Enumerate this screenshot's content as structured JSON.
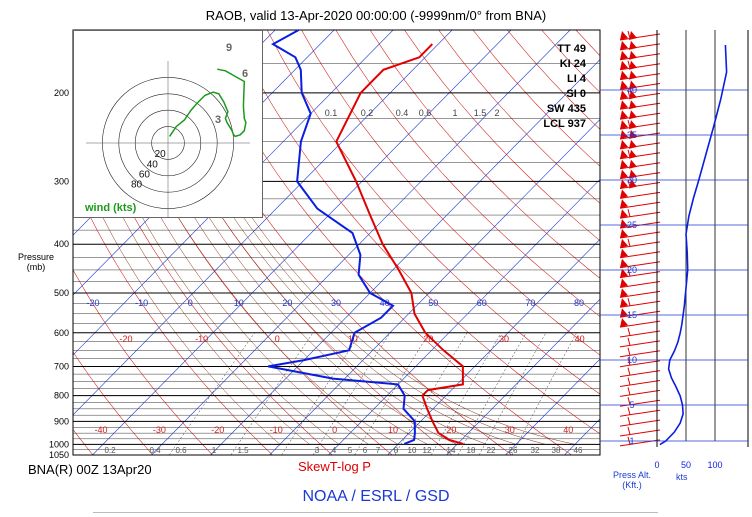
{
  "header": {
    "title": "RAOB, valid 13-Apr-2020 00:00:00 (-9999nm/0° from BNA)"
  },
  "footer": {
    "agency": "NOAA / ESRL / GSD",
    "station": "BNA(R) 00Z 13Apr20",
    "diagram_type": "SkewT-log P"
  },
  "axes": {
    "pressure_label": "Pressure",
    "pressure_unit": "(mb)",
    "press_alt_label": "Press Alt.",
    "press_alt_unit": "(Kft.)",
    "wind_unit": "kts"
  },
  "indices": [
    {
      "name": "TT",
      "value": "49"
    },
    {
      "name": "KI",
      "value": "24"
    },
    {
      "name": "LI",
      "value": "4"
    },
    {
      "name": "SI",
      "value": "0"
    },
    {
      "name": "SW",
      "value": "435"
    },
    {
      "name": "LCL",
      "value": "937"
    }
  ],
  "hodograph": {
    "label": "wind (kts)",
    "ring_labels": [
      "20",
      "40",
      "60",
      "80"
    ]
  },
  "colors": {
    "temperature": "#e00000",
    "dewpoint": "#0a1ee0",
    "wind_speed": "#0a1ee0",
    "isobar": "#000000",
    "isotherm": "#1b39d3",
    "dry_adiabat": "#d21b1b",
    "moist_adiabat": "#8b2f12",
    "mixing_ratio": "#000000",
    "hodograph": "#1a9c1a",
    "barb": "#e00000"
  },
  "chart_data": [
    {
      "type": "line",
      "title": "SkewT-log P",
      "ylabel": "Pressure (mb)",
      "yscale": "log-inverted",
      "ylim": [
        1050,
        150
      ],
      "pressure_ticks": [
        "1050",
        "1000",
        "900",
        "800",
        "700",
        "600",
        "500",
        "400",
        "300",
        "200"
      ],
      "isotherm_labels_row1": [
        "-20",
        "-10",
        "0",
        "10",
        "20",
        "30",
        "40",
        "50",
        "60",
        "70",
        "80"
      ],
      "isotherm_labels_row2": [
        "-20",
        "-10",
        "0",
        "10",
        "20",
        "30",
        "40"
      ],
      "isotherm_labels_row3": [
        "-40",
        "-30",
        "-20",
        "-10",
        "0",
        "10",
        "20",
        "30",
        "40"
      ],
      "dry_adiabat_labels": [
        "0.1",
        "0.2",
        "0.4",
        "0.6",
        "1",
        "1.5",
        "2"
      ],
      "mixing_ratio_labels": [
        "0.2",
        "0.4",
        "0.6",
        "1",
        "1.5",
        "3",
        "4",
        "5",
        "6",
        "7",
        "8",
        "10",
        "12",
        "14",
        "18",
        "22",
        "26",
        "32",
        "38",
        "46"
      ],
      "series": [
        {
          "name": "Temperature",
          "pressure": [
            998,
            980,
            950,
            900,
            850,
            800,
            780,
            760,
            700,
            650,
            600,
            550,
            500,
            450,
            400,
            350,
            300,
            250,
            200,
            180,
            170,
            160
          ],
          "values": [
            21,
            18,
            15,
            12,
            9,
            6,
            6,
            11,
            8,
            2,
            -4,
            -9,
            -13,
            -19,
            -26,
            -33,
            -41,
            -51,
            -55,
            -55,
            -51,
            -51
          ]
        },
        {
          "name": "Dewpoint",
          "pressure": [
            998,
            980,
            950,
            900,
            850,
            800,
            760,
            740,
            700,
            680,
            650,
            600,
            560,
            530,
            500,
            460,
            420,
            380,
            340,
            300,
            250,
            220,
            200,
            180,
            170,
            160,
            150
          ],
          "values": [
            11,
            12,
            11,
            9,
            5,
            3,
            0,
            -12,
            -25,
            -20,
            -14,
            -16,
            -14,
            -14,
            -20,
            -25,
            -28,
            -33,
            -43,
            -51,
            -57,
            -60,
            -65,
            -69,
            -72,
            -78,
            -76
          ]
        }
      ]
    },
    {
      "type": "line",
      "title": "Wind speed profile",
      "xlabel": "kts",
      "ylabel": "Press Alt. (Kft.)",
      "x_ticks": [
        "0",
        "50",
        "100"
      ],
      "alt_ticks": [
        "1",
        "5",
        "10",
        "15",
        "20",
        "25",
        "30",
        "35",
        "40"
      ],
      "xlim": [
        0,
        130
      ],
      "series": [
        {
          "name": "Wind speed",
          "alt_kft": [
            0.6,
            1,
            2,
            3,
            4,
            5,
            6,
            7,
            8,
            9,
            10,
            11,
            12,
            13,
            14,
            15,
            16,
            18,
            20,
            22,
            24,
            26,
            28,
            30,
            33,
            36,
            39,
            42,
            45
          ],
          "values": [
            5,
            15,
            30,
            40,
            45,
            44,
            40,
            33,
            25,
            20,
            22,
            30,
            36,
            40,
            43,
            45,
            47,
            50,
            53,
            52,
            50,
            55,
            63,
            72,
            85,
            98,
            110,
            120,
            118
          ]
        }
      ]
    },
    {
      "type": "scatter",
      "title": "wind (kts)",
      "rings_kts": [
        20,
        40,
        60,
        80
      ],
      "marked_altitudes": [
        "3",
        "6",
        "9"
      ],
      "series": [
        {
          "name": "Hodograph",
          "u": [
            2,
            10,
            20,
            28,
            35,
            45,
            55,
            62,
            68,
            73,
            70,
            72,
            78,
            80,
            82,
            88,
            93,
            95,
            93,
            92,
            93,
            70,
            60
          ],
          "v": [
            8,
            20,
            28,
            40,
            48,
            58,
            62,
            60,
            50,
            38,
            30,
            25,
            15,
            10,
            8,
            10,
            15,
            25,
            30,
            45,
            75,
            88,
            90
          ]
        }
      ]
    }
  ]
}
